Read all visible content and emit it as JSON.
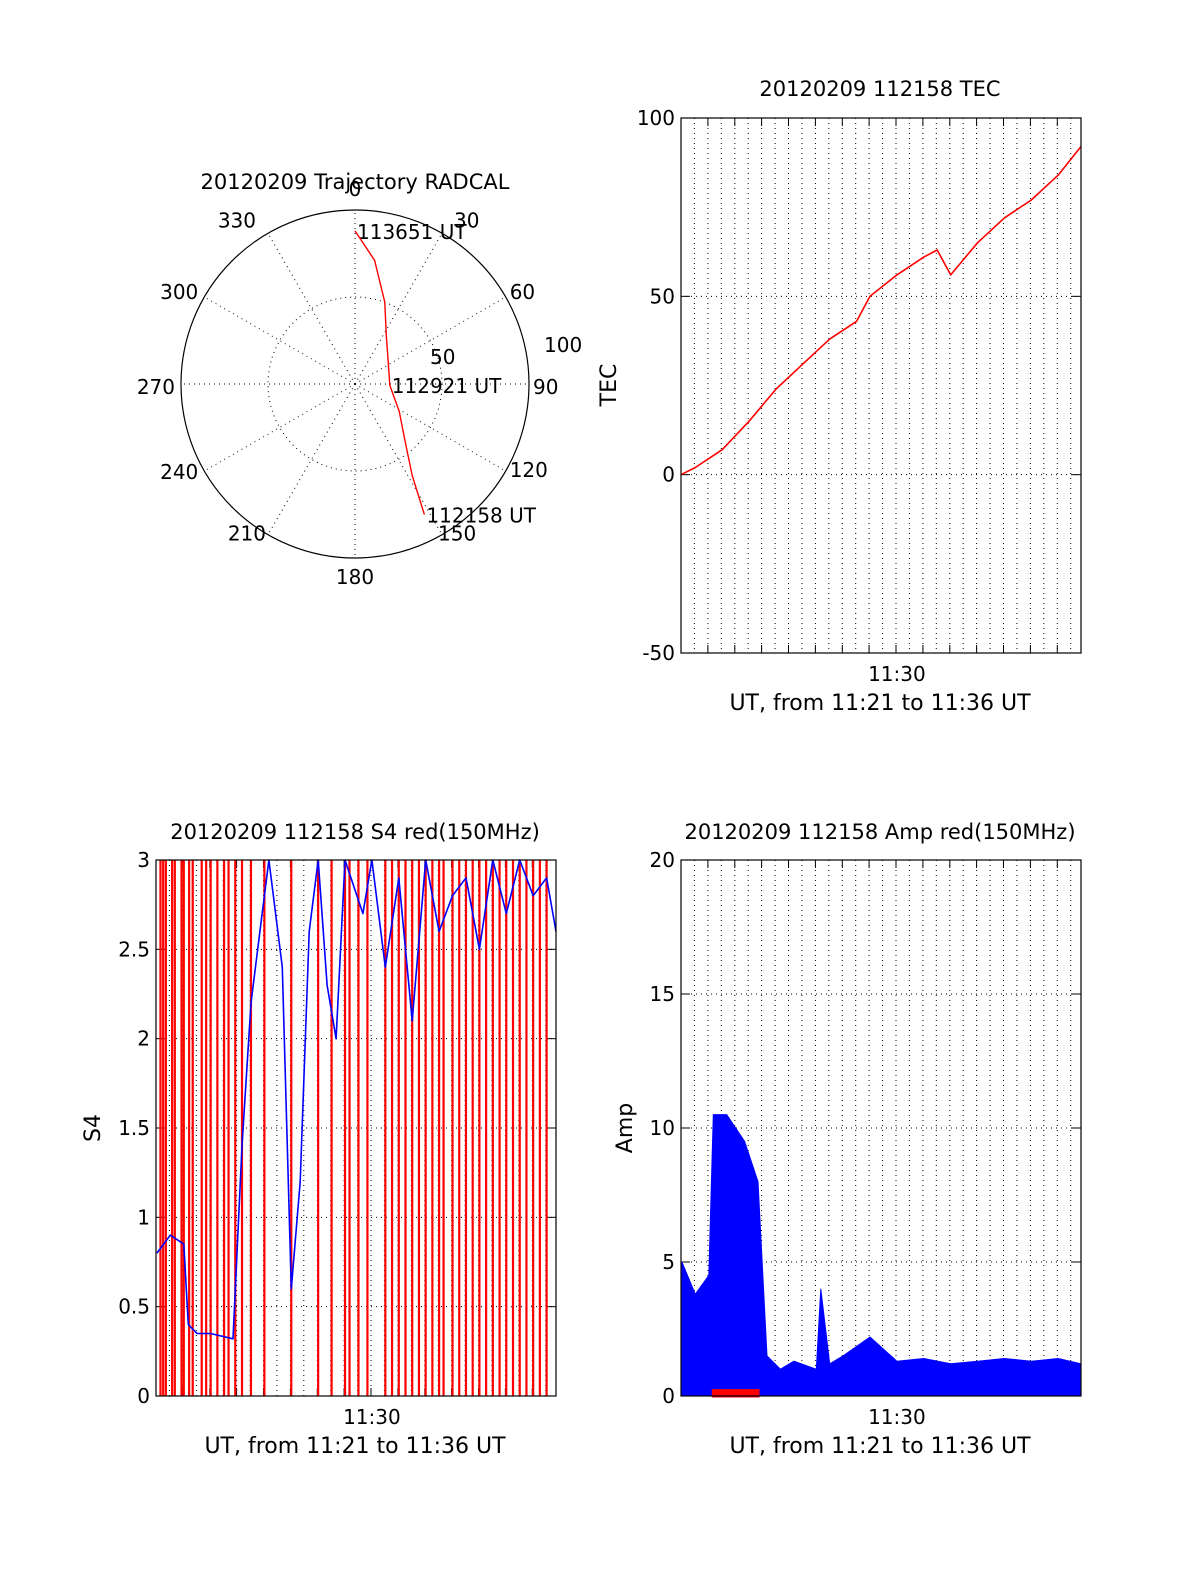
{
  "colors": {
    "red": "#ff0000",
    "blue": "#0000ff",
    "axis": "#000000"
  },
  "chart_data": [
    {
      "id": "trajectory",
      "type": "polar",
      "title": "20120209 Trajectory RADCAL",
      "angle_labels": [
        "0",
        "30",
        "60",
        "90",
        "120",
        "150",
        "180",
        "210",
        "240",
        "270",
        "300",
        "330"
      ],
      "radius_labels": [
        "50",
        "100"
      ],
      "rmax": 100,
      "series": [
        {
          "color": "red",
          "points": [
            {
              "az": 0,
              "r": 88
            },
            {
              "az": 9,
              "r": 72
            },
            {
              "az": 20,
              "r": 50
            },
            {
              "az": 33,
              "r": 33
            },
            {
              "az": 56,
              "r": 23
            },
            {
              "az": 92,
              "r": 20
            },
            {
              "az": 122,
              "r": 30
            },
            {
              "az": 139,
              "r": 44
            },
            {
              "az": 148,
              "r": 62
            },
            {
              "az": 152,
              "r": 85
            }
          ]
        }
      ],
      "annotations": [
        {
          "text": "113651 UT",
          "az": 0,
          "r": 88
        },
        {
          "text": "112921 UT",
          "az": 92,
          "r": 20
        },
        {
          "text": "112158 UT",
          "az": 152,
          "r": 85
        }
      ]
    },
    {
      "id": "tec",
      "type": "line",
      "title": "20120209 112158 TEC",
      "xlabel": "UT, from 11:21 to 11:36 UT",
      "ylabel": "TEC",
      "xlim": [
        "11:21:58",
        "11:36:51"
      ],
      "ylim": [
        -50,
        100
      ],
      "yticks": [
        "-50",
        "0",
        "50",
        "100"
      ],
      "xticks": [
        {
          "t": "11:30:00",
          "label": "11:30"
        }
      ],
      "series": [
        {
          "color": "red",
          "x": [
            "11:21:58",
            "11:22:30",
            "11:23:30",
            "11:24:30",
            "11:25:30",
            "11:26:30",
            "11:27:30",
            "11:28:30",
            "11:29:00",
            "11:30:00",
            "11:31:00",
            "11:31:30",
            "11:32:00",
            "11:33:00",
            "11:34:00",
            "11:35:00",
            "11:36:00",
            "11:36:51"
          ],
          "y": [
            0,
            2,
            7,
            15,
            24,
            31,
            38,
            43,
            50,
            56,
            61,
            63,
            56,
            65,
            72,
            77,
            84,
            92
          ]
        }
      ]
    },
    {
      "id": "s4",
      "type": "line",
      "title": "20120209 112158 S4 red(150MHz)",
      "xlabel": "UT, from 11:21 to 11:36 UT",
      "ylabel": "S4",
      "xlim": [
        "11:21:58",
        "11:36:51"
      ],
      "ylim": [
        0,
        3
      ],
      "yticks": [
        "0",
        "0.5",
        "1",
        "1.5",
        "2",
        "2.5",
        "3"
      ],
      "xticks": [
        {
          "t": "11:30:00",
          "label": "11:30"
        }
      ],
      "series": [
        {
          "color": "blue",
          "x": [
            "11:22:00",
            "11:22:30",
            "11:23:00",
            "11:23:10",
            "11:23:30",
            "11:24:00",
            "11:24:50",
            "11:25:10",
            "11:25:30",
            "11:25:50",
            "11:26:10",
            "11:26:40",
            "11:27:00",
            "11:27:20",
            "11:27:40",
            "11:28:00",
            "11:28:20",
            "11:28:40",
            "11:29:00",
            "11:29:40",
            "11:30:00",
            "11:30:30",
            "11:31:00",
            "11:31:30",
            "11:32:00",
            "11:32:30",
            "11:33:00",
            "11:33:30",
            "11:34:00",
            "11:34:30",
            "11:35:00",
            "11:35:30",
            "11:36:00",
            "11:36:30",
            "11:36:51"
          ],
          "y": [
            0.8,
            0.9,
            0.85,
            0.4,
            0.35,
            0.35,
            0.32,
            1.4,
            2.2,
            2.6,
            3.0,
            2.4,
            0.6,
            1.2,
            2.6,
            3.0,
            2.3,
            2.0,
            3.0,
            2.7,
            3.0,
            2.4,
            2.9,
            2.1,
            3.0,
            2.6,
            2.8,
            2.9,
            2.5,
            3.0,
            2.7,
            3.0,
            2.8,
            2.9,
            2.6
          ]
        }
      ],
      "spikes": {
        "color": "red",
        "from": 0,
        "to": 3,
        "x": [
          "11:22:08",
          "11:22:14",
          "11:22:20",
          "11:22:34",
          "11:22:40",
          "11:22:55",
          "11:23:00",
          "11:23:12",
          "11:23:20",
          "11:23:40",
          "11:23:50",
          "11:24:00",
          "11:24:15",
          "11:24:30",
          "11:24:40",
          "11:24:55",
          "11:25:10",
          "11:25:30",
          "11:26:00",
          "11:27:00",
          "11:28:00",
          "11:28:30",
          "11:29:00",
          "11:29:10",
          "11:29:30",
          "11:29:50",
          "11:30:30",
          "11:30:45",
          "11:31:00",
          "11:31:15",
          "11:31:30",
          "11:31:45",
          "11:32:00",
          "11:32:15",
          "11:32:30",
          "11:32:40",
          "11:33:00",
          "11:33:15",
          "11:33:30",
          "11:33:45",
          "11:34:00",
          "11:34:15",
          "11:34:30",
          "11:34:45",
          "11:35:00",
          "11:35:15",
          "11:35:30",
          "11:35:45",
          "11:36:00",
          "11:36:15",
          "11:36:30"
        ]
      }
    },
    {
      "id": "amp",
      "type": "area",
      "title": "20120209 112158 Amp red(150MHz)",
      "xlabel": "UT, from 11:21 to 11:36 UT",
      "ylabel": "Amp",
      "xlim": [
        "11:21:58",
        "11:36:51"
      ],
      "ylim": [
        0,
        20
      ],
      "yticks": [
        "0",
        "5",
        "10",
        "15",
        "20"
      ],
      "xticks": [
        {
          "t": "11:30:00",
          "label": "11:30"
        }
      ],
      "series": [
        {
          "color": "blue",
          "x": [
            "11:22:00",
            "11:22:30",
            "11:23:00",
            "11:23:10",
            "11:23:40",
            "11:24:20",
            "11:24:50",
            "11:25:10",
            "11:25:40",
            "11:26:10",
            "11:27:00",
            "11:27:10",
            "11:27:30",
            "11:28:00",
            "11:29:00",
            "11:30:00",
            "11:31:00",
            "11:32:00",
            "11:33:00",
            "11:34:00",
            "11:35:00",
            "11:36:00",
            "11:36:51"
          ],
          "y": [
            5.0,
            3.8,
            4.5,
            10.5,
            10.5,
            9.5,
            8.0,
            1.5,
            1.0,
            1.3,
            1.0,
            4.0,
            1.2,
            1.5,
            2.2,
            1.3,
            1.4,
            1.2,
            1.3,
            1.4,
            1.3,
            1.4,
            1.2
          ]
        },
        {
          "color": "red",
          "x": [
            "11:23:10",
            "11:24:50"
          ],
          "y": [
            0.2,
            0.2
          ]
        }
      ]
    }
  ]
}
